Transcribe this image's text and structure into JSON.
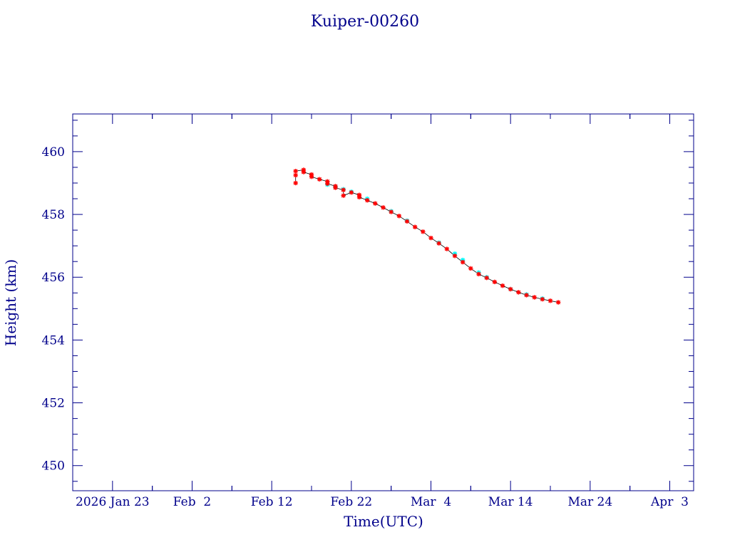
{
  "chart_data": {
    "type": "scatter",
    "title": "Kuiper-00260",
    "xlabel": "Time(UTC)",
    "ylabel": "Height (km)",
    "x_tick_labels": [
      {
        "date": "2026-01-24",
        "label": "2026 Jan 23"
      },
      {
        "date": "2026-02-03",
        "label": "Feb  2"
      },
      {
        "date": "2026-02-13",
        "label": "Feb 12"
      },
      {
        "date": "2026-02-23",
        "label": "Feb 22"
      },
      {
        "date": "2026-03-05",
        "label": "Mar  4"
      },
      {
        "date": "2026-03-15",
        "label": "Mar 14"
      },
      {
        "date": "2026-03-25",
        "label": "Mar 24"
      },
      {
        "date": "2026-04-04",
        "label": "Apr  3"
      }
    ],
    "xlim": [
      "2026-01-19",
      "2026-04-07"
    ],
    "ylim": [
      449.2,
      461.2
    ],
    "y_ticks": [
      450,
      452,
      454,
      456,
      458,
      460
    ],
    "grid": false,
    "colors": {
      "axes": "#00008b",
      "primary": "#ff0000",
      "secondary": "#00ffff",
      "connector": "#000000"
    },
    "series": [
      {
        "color": "#ff0000",
        "marker": "star",
        "points": [
          [
            "2026-02-16",
            459.0
          ],
          [
            "2026-02-16",
            459.25
          ],
          [
            "2026-02-16",
            459.38
          ],
          [
            "2026-02-17",
            459.42
          ],
          [
            "2026-02-17",
            459.35
          ],
          [
            "2026-02-18",
            459.27
          ],
          [
            "2026-02-18",
            459.2
          ],
          [
            "2026-02-19",
            459.12
          ],
          [
            "2026-02-20",
            459.05
          ],
          [
            "2026-02-20",
            458.98
          ],
          [
            "2026-02-21",
            458.9
          ],
          [
            "2026-02-21",
            458.85
          ],
          [
            "2026-02-22",
            458.78
          ],
          [
            "2026-02-22",
            458.6
          ],
          [
            "2026-02-23",
            458.7
          ],
          [
            "2026-02-24",
            458.62
          ],
          [
            "2026-02-24",
            458.55
          ],
          [
            "2026-02-25",
            458.45
          ],
          [
            "2026-02-26",
            458.35
          ],
          [
            "2026-02-27",
            458.22
          ],
          [
            "2026-02-28",
            458.08
          ],
          [
            "2026-03-01",
            457.95
          ],
          [
            "2026-03-02",
            457.78
          ],
          [
            "2026-03-03",
            457.6
          ],
          [
            "2026-03-04",
            457.45
          ],
          [
            "2026-03-05",
            457.25
          ],
          [
            "2026-03-06",
            457.08
          ],
          [
            "2026-03-07",
            456.9
          ],
          [
            "2026-03-08",
            456.68
          ],
          [
            "2026-03-09",
            456.48
          ],
          [
            "2026-03-10",
            456.28
          ],
          [
            "2026-03-11",
            456.1
          ],
          [
            "2026-03-12",
            455.98
          ],
          [
            "2026-03-13",
            455.85
          ],
          [
            "2026-03-14",
            455.73
          ],
          [
            "2026-03-15",
            455.62
          ],
          [
            "2026-03-16",
            455.52
          ],
          [
            "2026-03-17",
            455.43
          ],
          [
            "2026-03-18",
            455.36
          ],
          [
            "2026-03-19",
            455.3
          ],
          [
            "2026-03-20",
            455.25
          ],
          [
            "2026-03-21",
            455.2
          ]
        ]
      },
      {
        "color": "#00ffff",
        "marker": "star",
        "points": [
          [
            "2026-02-20",
            458.95
          ],
          [
            "2026-02-21",
            458.88
          ],
          [
            "2026-02-22",
            458.8
          ],
          [
            "2026-02-23",
            458.72
          ],
          [
            "2026-02-25",
            458.5
          ],
          [
            "2026-02-28",
            458.1
          ],
          [
            "2026-03-02",
            457.8
          ],
          [
            "2026-03-06",
            457.1
          ],
          [
            "2026-03-08",
            456.75
          ],
          [
            "2026-03-09",
            456.55
          ],
          [
            "2026-03-11",
            456.15
          ],
          [
            "2026-03-12",
            456.0
          ],
          [
            "2026-03-15",
            455.62
          ],
          [
            "2026-03-17",
            455.45
          ],
          [
            "2026-03-19",
            455.32
          ]
        ]
      }
    ]
  }
}
